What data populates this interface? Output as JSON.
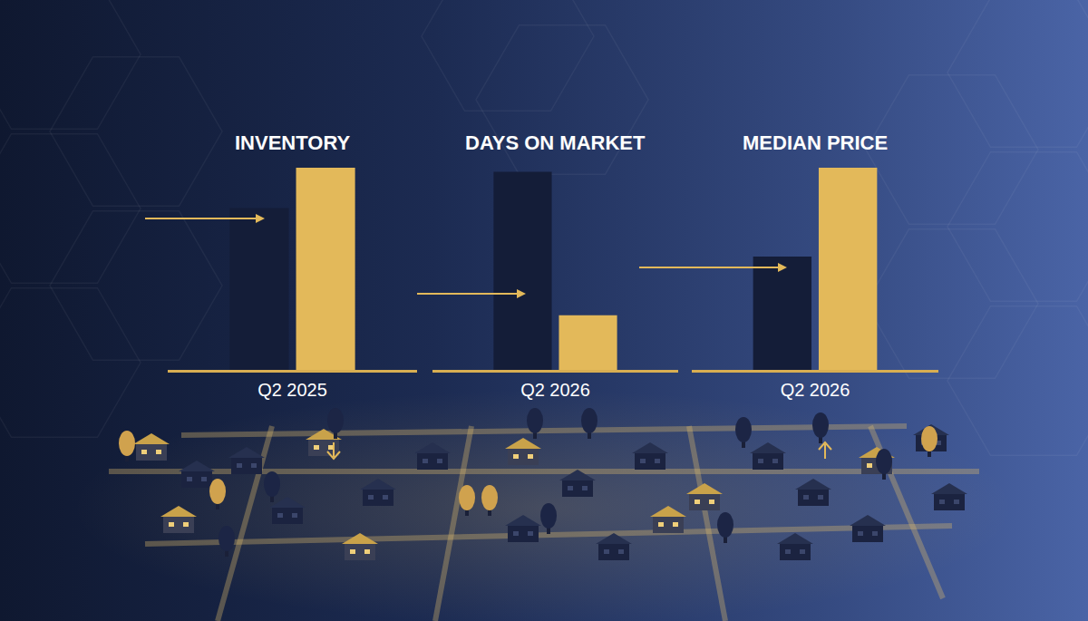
{
  "chart_data": [
    {
      "type": "bar",
      "title": "INVENTORY",
      "x_label": "Q2 2025",
      "categories": [
        null,
        null
      ],
      "values": [
        80,
        100
      ],
      "colors": [
        "#141d38",
        "#e3b95a"
      ],
      "ylim": [
        0,
        100
      ],
      "grid": false,
      "tick_labels": false
    },
    {
      "type": "bar",
      "title": "DAYS ON MARKET",
      "x_label": "Q2 2026",
      "categories": [
        null,
        null
      ],
      "values": [
        98,
        27
      ],
      "colors": [
        "#141d38",
        "#e3b95a"
      ],
      "ylim": [
        0,
        100
      ],
      "grid": false,
      "tick_labels": false
    },
    {
      "type": "bar",
      "title": "MEDIAN PRICE",
      "x_label": "Q2 2026",
      "categories": [
        null,
        null
      ],
      "values": [
        56,
        100
      ],
      "colors": [
        "#141d38",
        "#e3b95a"
      ],
      "ylim": [
        0,
        100
      ],
      "grid": false,
      "tick_labels": false
    }
  ]
}
